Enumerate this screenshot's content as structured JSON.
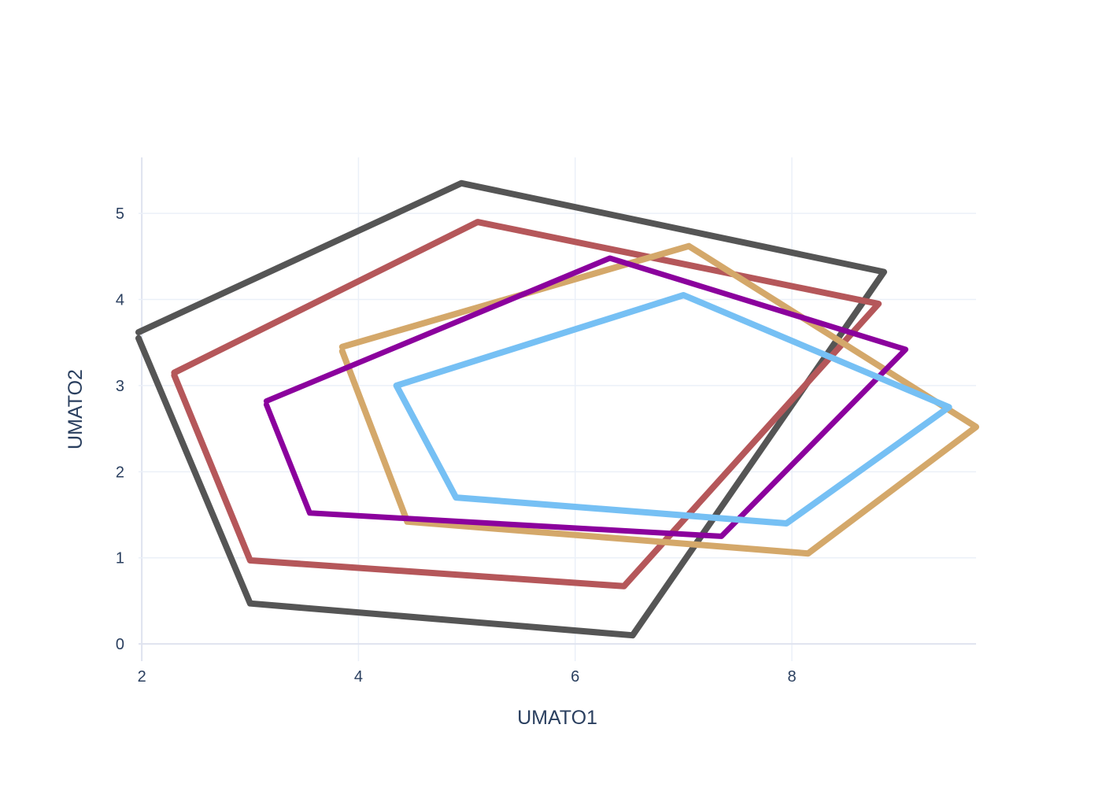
{
  "chart_data": {
    "type": "line",
    "title": "",
    "xlabel": "UMATO1",
    "ylabel": "UMATO2",
    "xlim": [
      1.97,
      9.7
    ],
    "ylim": [
      -0.2,
      5.65
    ],
    "xticks": [
      2,
      4,
      6,
      8
    ],
    "yticks": [
      0,
      1,
      2,
      3,
      4,
      5
    ],
    "grid": true,
    "legend": "none",
    "series": [
      {
        "color": "#555555",
        "width": 8,
        "points": [
          [
            1.97,
            3.62
          ],
          [
            4.95,
            5.35
          ],
          [
            8.85,
            4.32
          ],
          [
            6.53,
            0.1
          ],
          [
            3.0,
            0.47
          ],
          [
            1.97,
            3.55
          ]
        ]
      },
      {
        "color": "#b5575a",
        "width": 8,
        "points": [
          [
            2.3,
            3.15
          ],
          [
            5.1,
            4.9
          ],
          [
            8.8,
            3.95
          ],
          [
            6.45,
            0.67
          ],
          [
            3.0,
            0.97
          ],
          [
            2.3,
            3.12
          ]
        ]
      },
      {
        "color": "#d4a86a",
        "width": 8,
        "points": [
          [
            3.85,
            3.45
          ],
          [
            7.05,
            4.62
          ],
          [
            9.7,
            2.52
          ],
          [
            8.15,
            1.05
          ],
          [
            4.45,
            1.42
          ],
          [
            3.85,
            3.4
          ]
        ]
      },
      {
        "color": "#8b019d",
        "width": 7,
        "points": [
          [
            3.15,
            2.82
          ],
          [
            6.32,
            4.48
          ],
          [
            9.05,
            3.42
          ],
          [
            7.35,
            1.25
          ],
          [
            3.55,
            1.52
          ],
          [
            3.15,
            2.78
          ]
        ]
      },
      {
        "color": "#76c0f4",
        "width": 8,
        "points": [
          [
            4.35,
            3.0
          ],
          [
            7.0,
            4.05
          ],
          [
            9.45,
            2.75
          ],
          [
            7.95,
            1.4
          ],
          [
            4.9,
            1.7
          ],
          [
            4.35,
            3.0
          ]
        ]
      }
    ]
  }
}
